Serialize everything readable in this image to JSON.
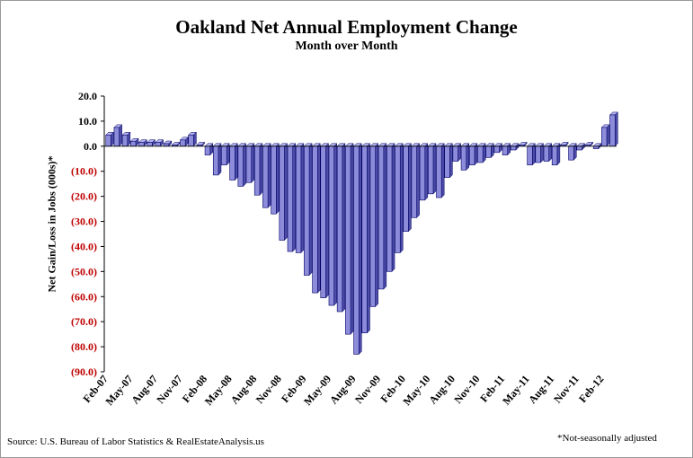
{
  "chart_data": {
    "type": "bar",
    "title": "Oakland Net Annual Employment Change",
    "subtitle": "Month over Month",
    "ylabel": "Net Gain/Loss in Jobs (000s)*",
    "xlabel": "",
    "ylim": [
      -90,
      20
    ],
    "yticks": [
      20,
      10,
      0,
      -10,
      -20,
      -30,
      -40,
      -50,
      -60,
      -70,
      -80,
      -90
    ],
    "ytick_labels": [
      "20.0",
      "10.0",
      "0.0",
      "(10.0)",
      "(20.0)",
      "(30.0)",
      "(40.0)",
      "(50.0)",
      "(60.0)",
      "(70.0)",
      "(80.0)",
      "(90.0)"
    ],
    "categories": [
      "Feb-07",
      "Mar-07",
      "Apr-07",
      "May-07",
      "Jun-07",
      "Jul-07",
      "Aug-07",
      "Sep-07",
      "Oct-07",
      "Nov-07",
      "Dec-07",
      "Jan-08",
      "Feb-08",
      "Mar-08",
      "Apr-08",
      "May-08",
      "Jun-08",
      "Jul-08",
      "Aug-08",
      "Sep-08",
      "Oct-08",
      "Nov-08",
      "Dec-08",
      "Jan-09",
      "Feb-09",
      "Mar-09",
      "Apr-09",
      "May-09",
      "Jun-09",
      "Jul-09",
      "Aug-09",
      "Sep-09",
      "Oct-09",
      "Nov-09",
      "Dec-09",
      "Jan-10",
      "Feb-10",
      "Mar-10",
      "Apr-10",
      "May-10",
      "Jun-10",
      "Jul-10",
      "Aug-10",
      "Sep-10",
      "Oct-10",
      "Nov-10",
      "Dec-10",
      "Jan-11",
      "Feb-11",
      "Mar-11",
      "Apr-11",
      "May-11",
      "Jun-11",
      "Jul-11",
      "Aug-11",
      "Sep-11",
      "Oct-11",
      "Nov-11",
      "Dec-11",
      "Jan-12",
      "Feb-12",
      "Mar-12"
    ],
    "x_tick_labels": [
      "Feb-07",
      "May-07",
      "Aug-07",
      "Nov-07",
      "Feb-08",
      "May-08",
      "Aug-08",
      "Nov-08",
      "Feb-09",
      "May-09",
      "Aug-09",
      "Nov-09",
      "Feb-10",
      "May-10",
      "Aug-10",
      "Nov-10",
      "Feb-11",
      "May-11",
      "Aug-11",
      "Nov-11",
      "Feb-12"
    ],
    "x_tick_every": 3,
    "values": [
      4.5,
      7.5,
      4.5,
      2.0,
      1.5,
      1.5,
      1.5,
      1.0,
      0.5,
      2.5,
      4.5,
      0.5,
      -3.5,
      -11.5,
      -7.5,
      -13.5,
      -16.0,
      -14.5,
      -19.5,
      -24.5,
      -27.0,
      -37.5,
      -42.0,
      -42.5,
      -51.5,
      -58.5,
      -60.5,
      -63.5,
      -66.0,
      -75.0,
      -83.0,
      -74.5,
      -64.0,
      -57.0,
      -50.0,
      -42.5,
      -34.0,
      -28.5,
      -21.5,
      -19.0,
      -20.5,
      -12.5,
      -6.0,
      -9.5,
      -7.5,
      -6.5,
      -4.5,
      -2.5,
      -3.5,
      -1.5,
      0.5,
      -7.5,
      -6.5,
      -6.0,
      -7.5,
      0.5,
      -5.5,
      -1.5,
      0.5,
      -1.0,
      7.5,
      12.5
    ],
    "bar_color": "#8c8cda",
    "bar_edge_color": "#000066",
    "bar_side_color": "#4d4da8",
    "axis_tick_label_color_negative": "#c00000",
    "grid": false,
    "legend": "none",
    "source": "Source: U.S. Bureau of Labor Statistics & RealEstateAnalysis.us",
    "footnote": "*Not-seasonally adjusted"
  }
}
